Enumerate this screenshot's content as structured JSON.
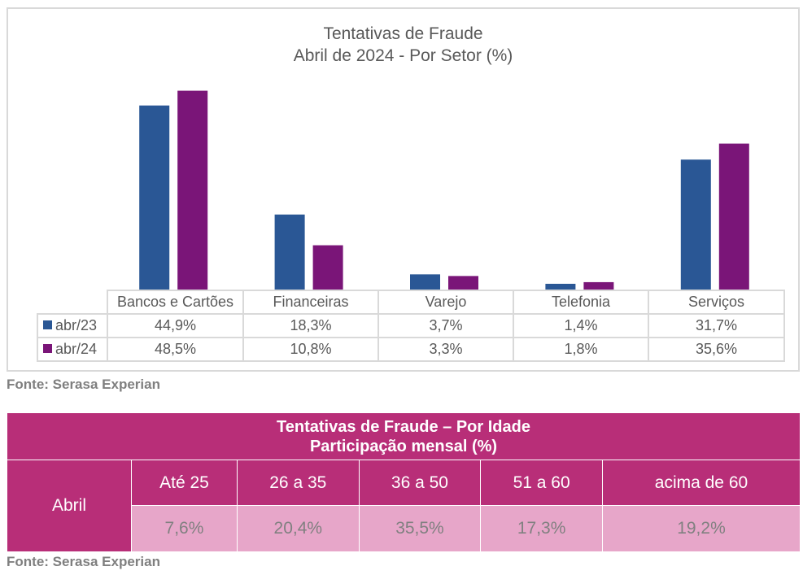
{
  "chart_data": {
    "type": "bar",
    "title": "Tentativas de Fraude",
    "subtitle": "Abril de 2024 - Por Setor (%)",
    "categories": [
      "Bancos e Cartões",
      "Financeiras",
      "Varejo",
      "Telefonia",
      "Serviços"
    ],
    "series": [
      {
        "name": "abr/23",
        "color": "#2a5795",
        "values": [
          44.9,
          18.3,
          3.7,
          1.4,
          31.7
        ],
        "labels": [
          "44,9%",
          "18,3%",
          "3,7%",
          "1,4%",
          "31,7%"
        ]
      },
      {
        "name": "abr/24",
        "color": "#7a1578",
        "values": [
          48.5,
          10.8,
          3.3,
          1.8,
          35.6
        ],
        "labels": [
          "48,5%",
          "10,8%",
          "3,3%",
          "1,8%",
          "35,6%"
        ]
      }
    ],
    "ylim": [
      0,
      50
    ],
    "grid": false,
    "legend": "data-table"
  },
  "chart_source": "Fonte: Serasa Experian",
  "age_table": {
    "title_line1": "Tentativas de Fraude – Por Idade",
    "title_line2": "Participação mensal (%)",
    "row_label": "Abril",
    "headers": [
      "Até 25",
      "26 a 35",
      "36 a 50",
      "51 a 60",
      "acima de 60"
    ],
    "values": [
      "7,6%",
      "20,4%",
      "35,5%",
      "17,3%",
      "19,2%"
    ],
    "colors": {
      "header": "#b82e78",
      "values": "#e7a6c9"
    }
  },
  "age_source": "Fonte: Serasa Experian"
}
